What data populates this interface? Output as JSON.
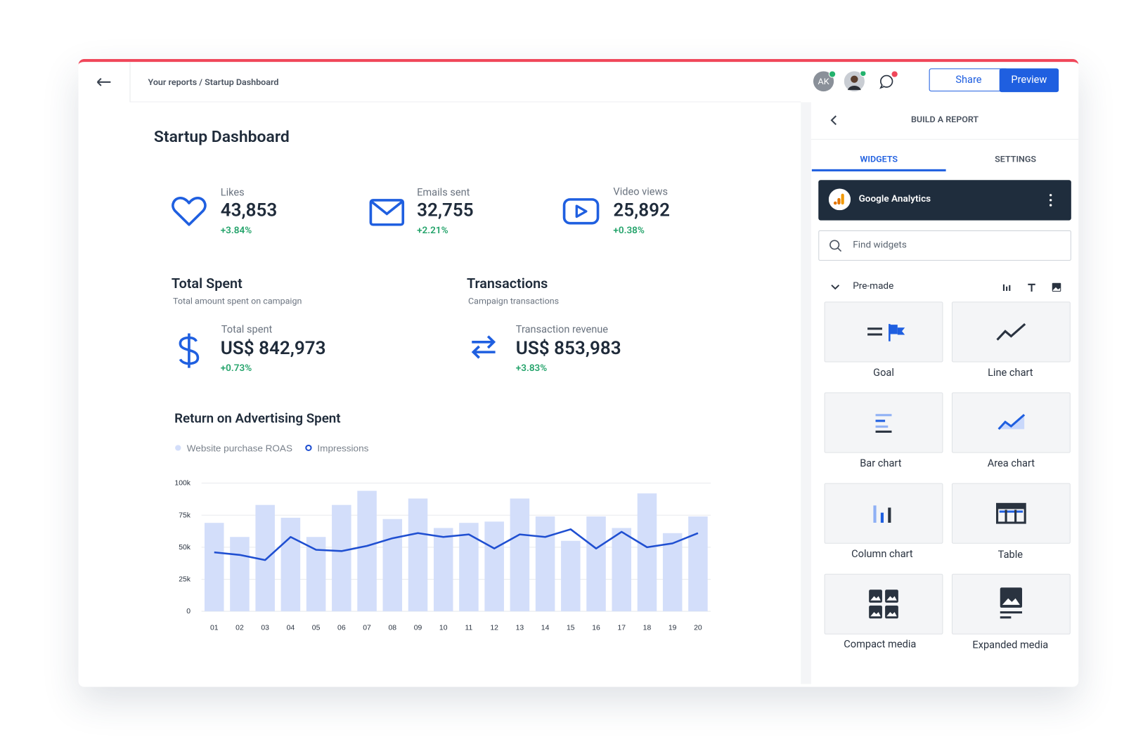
{
  "header": {
    "breadcrumb": "Your reports / Startup Dashboard",
    "avatar_initials": "AK",
    "share": "Share",
    "preview": "Preview"
  },
  "dashboard": {
    "title": "Startup Dashboard",
    "kpis": [
      {
        "label": "Likes",
        "value": "43,853",
        "change": "+3.84%"
      },
      {
        "label": "Emails sent",
        "value": "32,755",
        "change": "+2.21%"
      },
      {
        "label": "Video views",
        "value": "25,892",
        "change": "+0.38%"
      }
    ],
    "sections": [
      {
        "title": "Total Spent",
        "subtitle": "Total amount spent on campaign",
        "metric_label": "Total spent",
        "value": "US$ 842,973",
        "change": "+0.73%"
      },
      {
        "title": "Transactions",
        "subtitle": "Campaign transactions",
        "metric_label": "Transaction revenue",
        "value": "US$ 853,983",
        "change": "+3.83%"
      }
    ]
  },
  "chart_data": {
    "type": "combo",
    "title": "Return on Advertising Spent",
    "categories": [
      "01",
      "02",
      "03",
      "04",
      "05",
      "06",
      "07",
      "08",
      "09",
      "10",
      "11",
      "12",
      "13",
      "14",
      "15",
      "16",
      "17",
      "18",
      "19",
      "20"
    ],
    "series": [
      {
        "name": "Website purchase ROAS",
        "type": "bar",
        "color": "#d3defa",
        "values": [
          69,
          58,
          83,
          73,
          58,
          83,
          94,
          72,
          88,
          65,
          69,
          70,
          88,
          74,
          55,
          74,
          65,
          92,
          61,
          74
        ]
      },
      {
        "name": "Impressions",
        "type": "line",
        "color": "#1f4fd1",
        "values": [
          46,
          44,
          40,
          58,
          48,
          47,
          51,
          57,
          61,
          58,
          60,
          49,
          60,
          58,
          64,
          49,
          62,
          50,
          53,
          61
        ]
      }
    ],
    "ylim": [
      0,
      100
    ],
    "yticks": [
      0,
      {
        "value": 25,
        "label": "25k"
      },
      {
        "value": 50,
        "label": "50k"
      },
      {
        "value": 75,
        "label": "75k"
      },
      {
        "value": 100,
        "label": "100k"
      }
    ],
    "grid": true
  },
  "sidebar": {
    "title": "BUILD A REPORT",
    "tabs": [
      "WIDGETS",
      "SETTINGS"
    ],
    "source": "Google Analytics",
    "search_placeholder": "Find widgets",
    "group": "Pre-made",
    "widgets": [
      "Goal",
      "Line chart",
      "Bar chart",
      "Area chart",
      "Column chart",
      "Table",
      "Compact media",
      "Expanded media"
    ]
  }
}
